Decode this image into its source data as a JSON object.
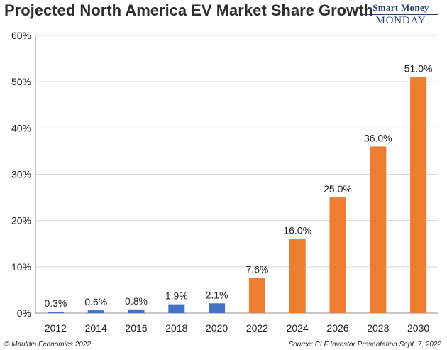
{
  "header": {
    "title": "Projected North America EV Market Share Growth",
    "logo_line1": "Smart Money",
    "logo_line2": "MONDAY"
  },
  "footer": {
    "left": "© Mauldin Economics 2022",
    "right": "Source: CLF Investor Presentation Sept. 7, 2022"
  },
  "colors": {
    "actual": "#4472c4",
    "projected": "#ed7d31",
    "grid": "#d9d9d9",
    "text": "#222222"
  },
  "chart_data": {
    "type": "bar",
    "title": "Projected North America EV Market Share Growth",
    "xlabel": "",
    "ylabel": "",
    "categories": [
      "2012",
      "2014",
      "2016",
      "2018",
      "2020",
      "2022",
      "2024",
      "2026",
      "2028",
      "2030"
    ],
    "values": [
      0.3,
      0.6,
      0.8,
      1.9,
      2.1,
      7.6,
      16.0,
      25.0,
      36.0,
      51.0
    ],
    "data_labels": [
      "0.3%",
      "0.6%",
      "0.8%",
      "1.9%",
      "2.1%",
      "7.6%",
      "16.0%",
      "25.0%",
      "36.0%",
      "51.0%"
    ],
    "bar_group": [
      "actual",
      "actual",
      "actual",
      "actual",
      "actual",
      "projected",
      "projected",
      "projected",
      "projected",
      "projected"
    ],
    "ylim": [
      0,
      60
    ],
    "yticks": [
      0,
      10,
      20,
      30,
      40,
      50,
      60
    ],
    "ytick_labels": [
      "0%",
      "10%",
      "20%",
      "30%",
      "40%",
      "50%",
      "60%"
    ],
    "grid": true,
    "legend": "none"
  }
}
